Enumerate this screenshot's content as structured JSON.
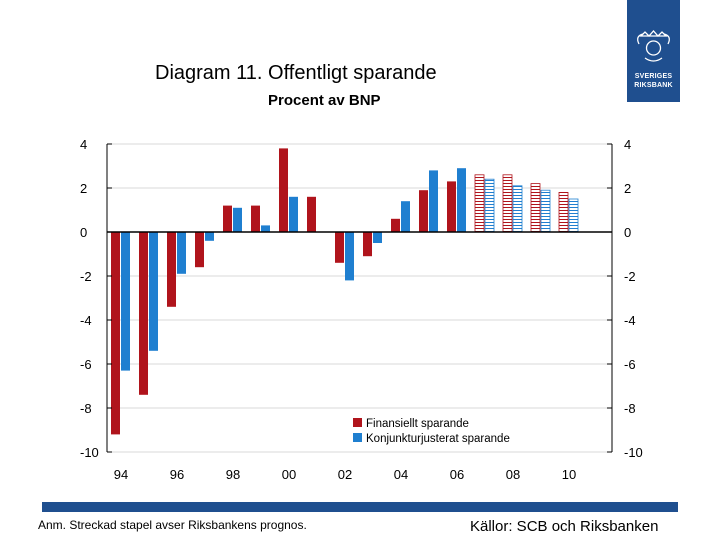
{
  "colors": {
    "financial": "#b0141c",
    "cyclical": "#1f7fd0",
    "brand": "#1f4f8f"
  },
  "logo": {
    "text_line1": "SVERIGES",
    "text_line2": "RIKSBANK"
  },
  "footer": {
    "note": "Anm. Streckad stapel avser Riksbankens prognos.",
    "source": "Källor: SCB och Riksbanken"
  },
  "chart_data": {
    "type": "bar",
    "title": "Diagram 11. Offentligt sparande",
    "subtitle": "Procent av BNP",
    "xlabel": "",
    "ylabel": "",
    "ylim": [
      -10,
      4
    ],
    "yticks": [
      4,
      2,
      0,
      -2,
      -4,
      -6,
      -8,
      -10
    ],
    "categories": [
      "94",
      "95",
      "96",
      "97",
      "98",
      "99",
      "00",
      "01",
      "02",
      "03",
      "04",
      "05",
      "06",
      "07",
      "08",
      "09",
      "10",
      "11"
    ],
    "x_tick_labels": [
      "94",
      "96",
      "98",
      "00",
      "02",
      "04",
      "06",
      "08",
      "10"
    ],
    "forecast_from_index": 13,
    "legend_position": "bottom-right",
    "series": [
      {
        "name": "Finansiellt sparande",
        "values": [
          -9.2,
          -7.4,
          -3.4,
          -1.6,
          1.2,
          1.2,
          3.8,
          1.6,
          -1.4,
          -1.1,
          0.6,
          1.9,
          2.3,
          2.6,
          2.6,
          2.2,
          1.8,
          null
        ]
      },
      {
        "name": "Konjunkturjusterat sparande",
        "values": [
          -6.3,
          -5.4,
          -1.9,
          -0.4,
          1.1,
          0.3,
          1.6,
          null,
          -2.2,
          -0.5,
          1.4,
          2.8,
          2.9,
          2.4,
          2.1,
          1.9,
          1.5,
          null
        ]
      }
    ]
  }
}
